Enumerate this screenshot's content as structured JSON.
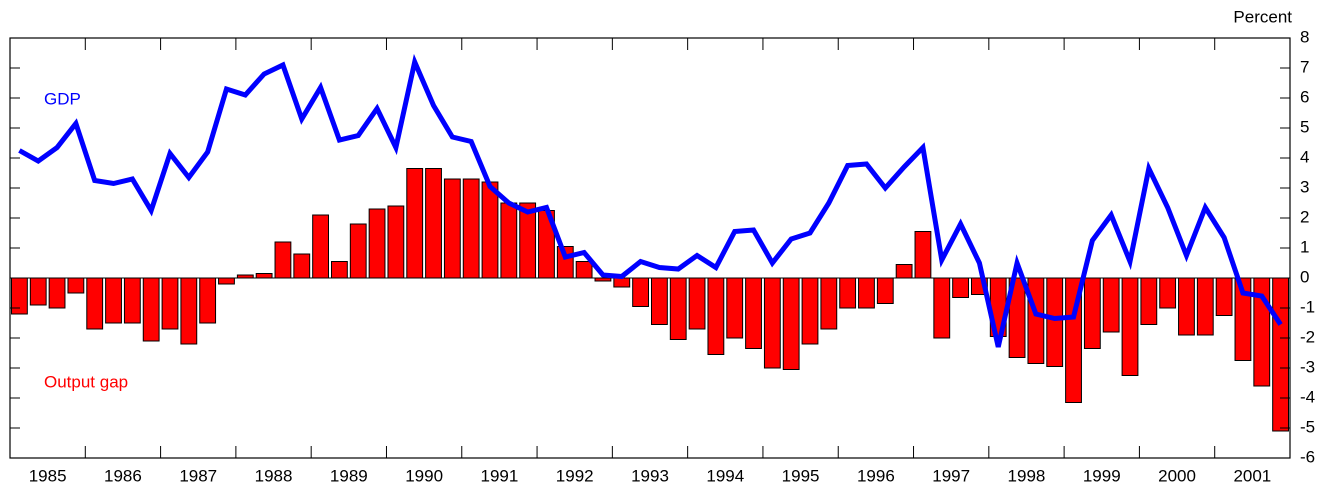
{
  "chart_data": {
    "type": "bar-line",
    "y_label": "Percent",
    "annotations": [
      "GDP",
      "Output gap"
    ],
    "categories": [
      null,
      "1985",
      null,
      null,
      null,
      "1986",
      null,
      null,
      null,
      "1987",
      null,
      null,
      null,
      "1988",
      null,
      null,
      null,
      "1989",
      null,
      null,
      null,
      "1990",
      null,
      null,
      null,
      "1991",
      null,
      null,
      null,
      "1992",
      null,
      null,
      null,
      "1993",
      null,
      null,
      null,
      "1994",
      null,
      null,
      null,
      "1995",
      null,
      null,
      null,
      "1996",
      null,
      null,
      null,
      "1997",
      null,
      null,
      null,
      "1998",
      null,
      null,
      null,
      "1999",
      null,
      null,
      null,
      "2000",
      null,
      null,
      null,
      "2001",
      null,
      null
    ],
    "series": [
      {
        "name": "Output gap",
        "type": "bar",
        "color": "#ff0000",
        "values": [
          -1.2,
          -0.9,
          -1.0,
          -0.5,
          -1.7,
          -1.5,
          -1.5,
          -2.1,
          -1.7,
          -2.2,
          -1.5,
          -0.2,
          0.1,
          0.15,
          1.2,
          0.8,
          2.1,
          0.55,
          1.8,
          2.3,
          2.4,
          3.65,
          3.65,
          3.3,
          3.3,
          3.2,
          2.5,
          2.5,
          2.25,
          1.05,
          0.55,
          -0.1,
          -0.3,
          -0.95,
          -1.55,
          -2.05,
          -1.7,
          -2.55,
          -2.0,
          -2.35,
          -3.0,
          -3.05,
          -2.2,
          -1.7,
          -1.0,
          -1.0,
          -0.85,
          0.45,
          1.55,
          -2.0,
          -0.65,
          -0.55,
          -1.95,
          -2.65,
          -2.85,
          -2.95,
          -4.15,
          -2.35,
          -1.8,
          -3.25,
          -1.55,
          -1.0,
          -1.9,
          -1.9,
          -1.25,
          -2.75,
          -3.6,
          -5.1
        ]
      },
      {
        "name": "GDP",
        "type": "line",
        "color": "#0000ff",
        "values": [
          4.25,
          3.9,
          4.35,
          5.15,
          3.25,
          3.15,
          3.3,
          2.25,
          4.15,
          3.35,
          4.2,
          6.3,
          6.1,
          6.8,
          7.1,
          5.3,
          6.35,
          4.6,
          4.75,
          5.65,
          4.35,
          7.2,
          5.75,
          4.7,
          4.55,
          3.05,
          2.5,
          2.2,
          2.35,
          0.7,
          0.85,
          0.1,
          0.05,
          0.55,
          0.35,
          0.3,
          0.75,
          0.35,
          1.55,
          1.6,
          0.5,
          1.3,
          1.5,
          2.5,
          3.75,
          3.8,
          3.0,
          3.7,
          4.35,
          0.6,
          1.8,
          0.5,
          -2.3,
          0.5,
          -1.2,
          -1.35,
          -1.3,
          1.25,
          2.1,
          0.55,
          3.65,
          2.35,
          0.75,
          2.35,
          1.35,
          -0.5,
          -0.6,
          -1.55
        ]
      }
    ],
    "ylim": [
      -6,
      8
    ],
    "yticks": [
      -6,
      -5,
      -4,
      -3,
      -2,
      -1,
      0,
      1,
      2,
      3,
      4,
      5,
      6,
      7,
      8
    ]
  }
}
